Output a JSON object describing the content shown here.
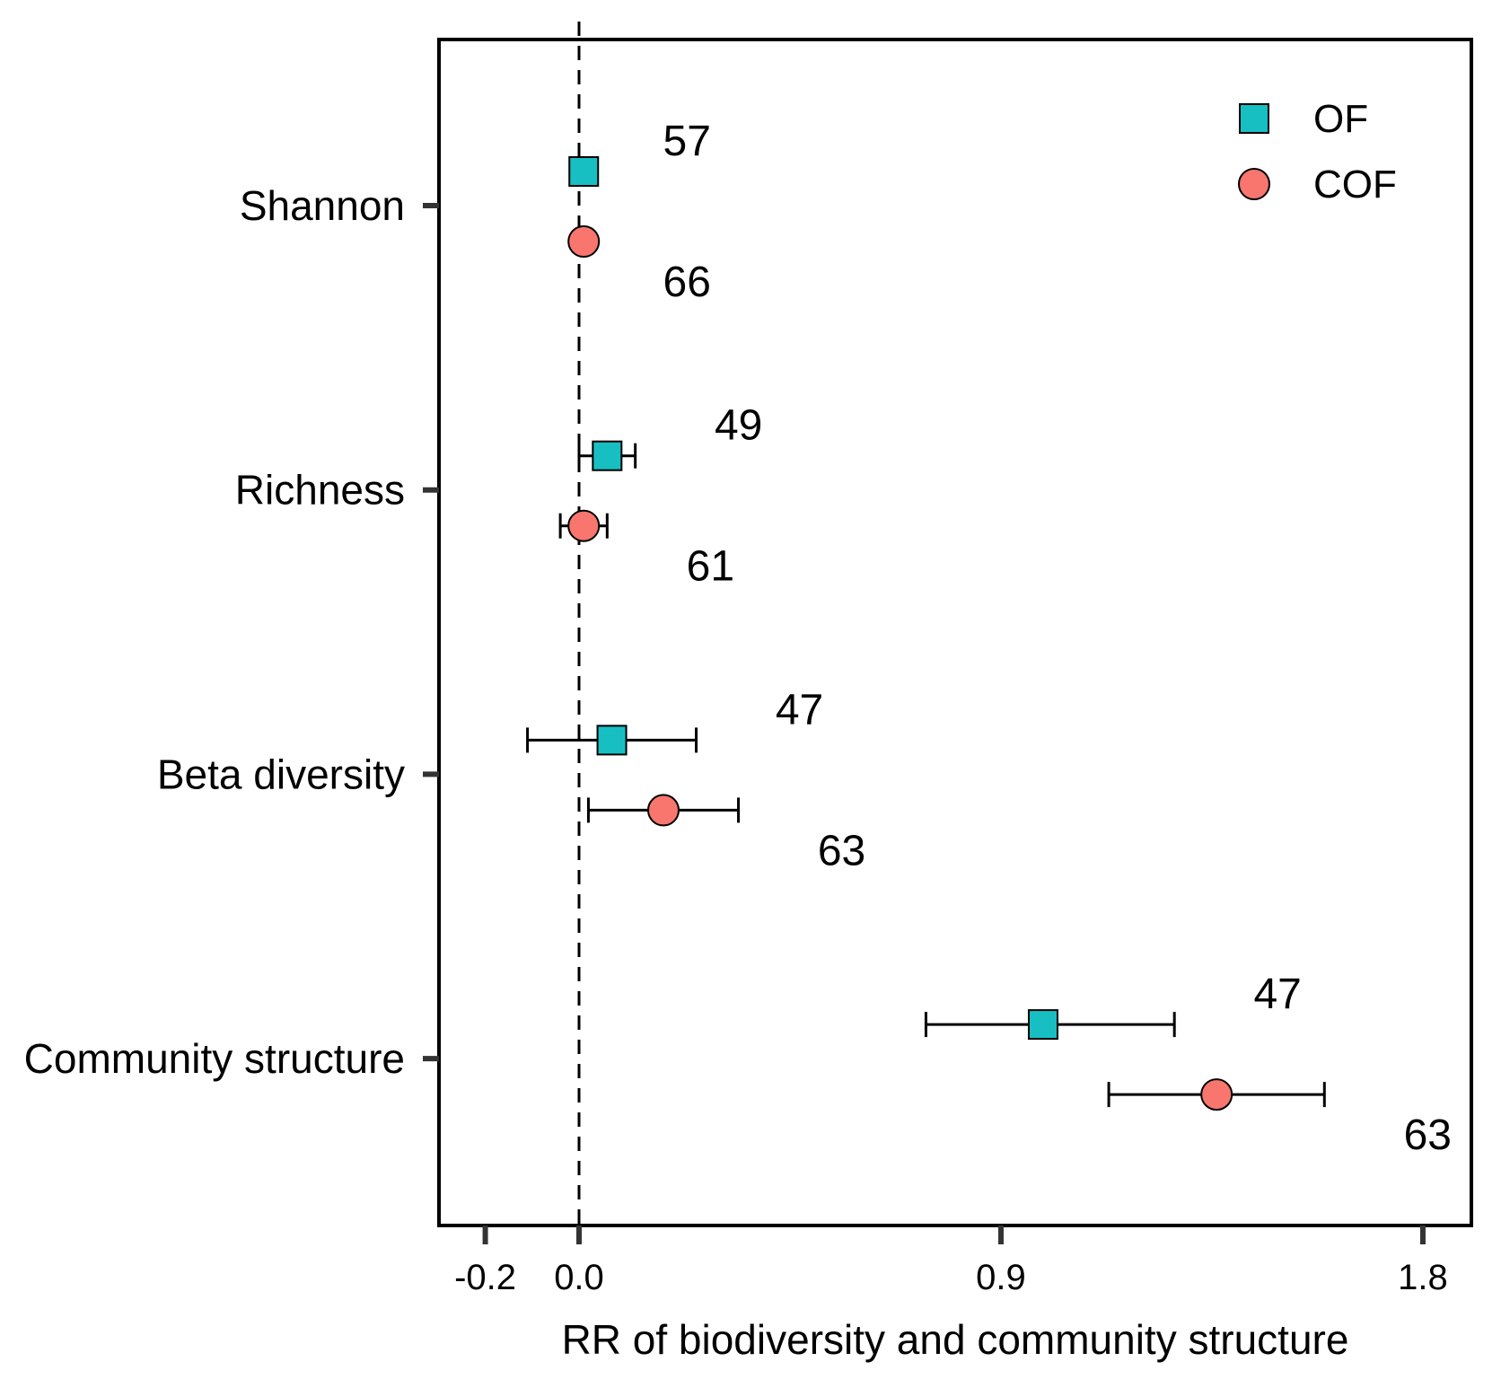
{
  "chart_data": {
    "type": "scatter",
    "subtype": "forest-plot",
    "title": "",
    "xlabel": "RR of biodiversity and community structure",
    "ylabel": "",
    "xlim": [
      -0.32,
      1.9
    ],
    "xticks": [
      -0.2,
      0.0,
      0.9,
      1.8
    ],
    "xtick_labels": [
      "-0.2",
      "0.0",
      "0.9",
      "1.8"
    ],
    "reference_line": 0.0,
    "categories": [
      "Shannon",
      "Richness",
      "Beta diversity",
      "Community structure"
    ],
    "legend_position": "top-right",
    "series": [
      {
        "name": "OF",
        "marker": "square",
        "color": "#17BFC2",
        "values": [
          0.01,
          0.06,
          0.07,
          0.99
        ],
        "ci_low": [
          0.01,
          0.0,
          -0.11,
          0.74
        ],
        "ci_high": [
          0.01,
          0.12,
          0.25,
          1.27
        ],
        "n": [
          "57",
          "49",
          "47",
          "47"
        ]
      },
      {
        "name": "COF",
        "marker": "circle",
        "color": "#F8766D",
        "values": [
          0.01,
          0.01,
          0.18,
          1.36
        ],
        "ci_low": [
          0.01,
          -0.04,
          0.02,
          1.13
        ],
        "ci_high": [
          0.01,
          0.06,
          0.34,
          1.59
        ],
        "n": [
          "66",
          "61",
          "63",
          "63"
        ]
      }
    ]
  }
}
